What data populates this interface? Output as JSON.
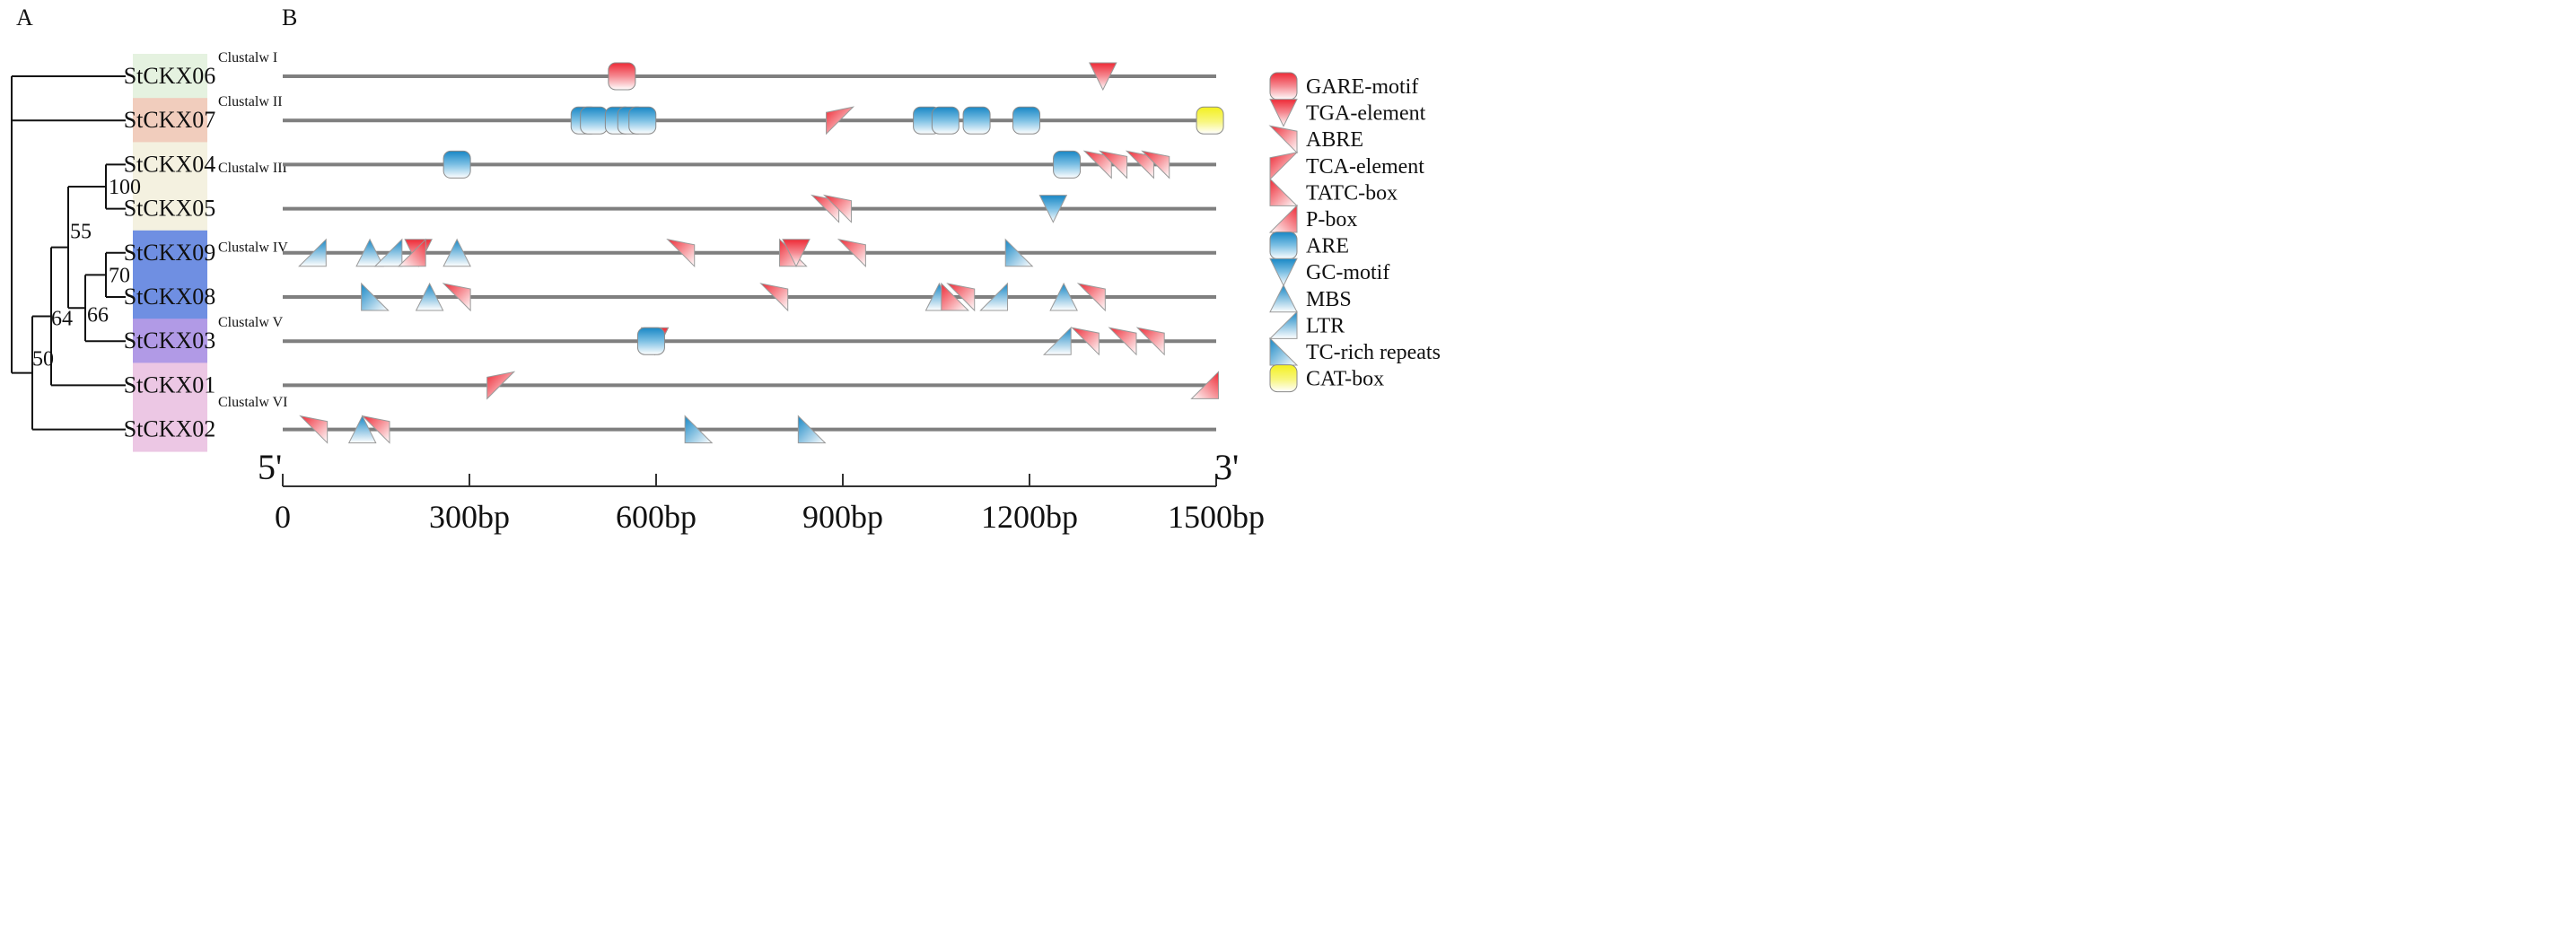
{
  "panels": {
    "left_label": "A",
    "right_label": "B"
  },
  "colors": {
    "red": "#ee2a36",
    "blue": "#1887c5",
    "yellow": "#f3f01e",
    "track": "#7f7f7f",
    "tree": "#111111",
    "green_box": "#e5f2e0",
    "salmon_box": "#f1cdbd",
    "cream_box": "#f4f1e0",
    "blue_box": "#6f8fe2",
    "purple_box": "#b19ae6",
    "pink_box": "#ecc7e4"
  },
  "genes": [
    {
      "name": "StCKX06",
      "box_color": "green_box"
    },
    {
      "name": "StCKX07",
      "box_color": "salmon_box"
    },
    {
      "name": "StCKX04",
      "box_color": "cream_box"
    },
    {
      "name": "StCKX05",
      "box_color": "cream_box"
    },
    {
      "name": "StCKX09",
      "box_color": "blue_box"
    },
    {
      "name": "StCKX08",
      "box_color": "blue_box"
    },
    {
      "name": "StCKX03",
      "box_color": "purple_box"
    },
    {
      "name": "StCKX01",
      "box_color": "pink_box"
    },
    {
      "name": "StCKX02",
      "box_color": "pink_box"
    }
  ],
  "clusters": [
    {
      "label": "Clustalw I",
      "row": 0
    },
    {
      "label": "Clustalw II",
      "row": 1
    },
    {
      "label": "Clustalw III",
      "row": 2.5
    },
    {
      "label": "Clustalw IV",
      "row": 4.3
    },
    {
      "label": "Clustalw V",
      "row": 6
    },
    {
      "label": "Clustalw VI",
      "row": 7.8
    }
  ],
  "bootstrap": [
    {
      "value": "100"
    },
    {
      "value": "70"
    },
    {
      "value": "66"
    },
    {
      "value": "55"
    },
    {
      "value": "64"
    },
    {
      "value": "50"
    }
  ],
  "axis": {
    "start_label": "5'",
    "end_label": "3'",
    "min": 0,
    "max": 1500,
    "ticks": [
      {
        "value": 0,
        "label": "0"
      },
      {
        "value": 300,
        "label": "300bp"
      },
      {
        "value": 600,
        "label": "600bp"
      },
      {
        "value": 900,
        "label": "900bp"
      },
      {
        "value": 1200,
        "label": "1200bp"
      },
      {
        "value": 1500,
        "label": "1500bp"
      }
    ]
  },
  "legend": [
    {
      "label": "GARE-motif",
      "shape": "rect-half",
      "color": "red"
    },
    {
      "label": "TGA-element",
      "shape": "tri-down",
      "color": "red"
    },
    {
      "label": "ABRE",
      "shape": "tri-topleft",
      "color": "red"
    },
    {
      "label": "TCA-element",
      "shape": "tri-topright",
      "color": "red"
    },
    {
      "label": "TATC-box",
      "shape": "tri-right-up",
      "color": "red"
    },
    {
      "label": "P-box",
      "shape": "tri-up-right",
      "color": "red"
    },
    {
      "label": "ARE",
      "shape": "rect-half",
      "color": "blue"
    },
    {
      "label": "GC-motif",
      "shape": "tri-down",
      "color": "blue"
    },
    {
      "label": "MBS",
      "shape": "tri-up",
      "color": "blue"
    },
    {
      "label": "LTR",
      "shape": "tri-up-right",
      "color": "blue"
    },
    {
      "label": "TC-rich repeats",
      "shape": "tri-right-up",
      "color": "blue"
    },
    {
      "label": "CAT-box",
      "shape": "rect-half",
      "color": "yellow"
    }
  ],
  "motifs": [
    [
      {
        "type": "GARE-motif",
        "pos": 545
      },
      {
        "type": "TGA-element",
        "pos": 1318
      }
    ],
    [
      {
        "type": "ARE",
        "pos": 485
      },
      {
        "type": "ARE",
        "pos": 500
      },
      {
        "type": "ARE",
        "pos": 540
      },
      {
        "type": "ARE",
        "pos": 560
      },
      {
        "type": "ARE",
        "pos": 578
      },
      {
        "type": "TCA-element",
        "pos": 895
      },
      {
        "type": "ARE",
        "pos": 1035
      },
      {
        "type": "ARE",
        "pos": 1065
      },
      {
        "type": "ARE",
        "pos": 1115
      },
      {
        "type": "ARE",
        "pos": 1195
      },
      {
        "type": "CAT-box",
        "pos": 1490
      }
    ],
    [
      {
        "type": "ARE",
        "pos": 280
      },
      {
        "type": "ARE",
        "pos": 1260
      },
      {
        "type": "ABRE",
        "pos": 1310
      },
      {
        "type": "ABRE",
        "pos": 1335
      },
      {
        "type": "ABRE",
        "pos": 1378
      },
      {
        "type": "ABRE",
        "pos": 1403
      }
    ],
    [
      {
        "type": "ABRE",
        "pos": 872
      },
      {
        "type": "ABRE",
        "pos": 892
      },
      {
        "type": "GC-motif",
        "pos": 1238
      }
    ],
    [
      {
        "type": "LTR",
        "pos": 48
      },
      {
        "type": "MBS",
        "pos": 140
      },
      {
        "type": "LTR",
        "pos": 170
      },
      {
        "type": "TGA-element",
        "pos": 218
      },
      {
        "type": "P-box",
        "pos": 208
      },
      {
        "type": "MBS",
        "pos": 280
      },
      {
        "type": "ABRE",
        "pos": 640
      },
      {
        "type": "TATC-box",
        "pos": 820
      },
      {
        "type": "TGA-element",
        "pos": 825
      },
      {
        "type": "ABRE",
        "pos": 915
      },
      {
        "type": "TC-rich repeats",
        "pos": 1183
      }
    ],
    [
      {
        "type": "TC-rich repeats",
        "pos": 148
      },
      {
        "type": "MBS",
        "pos": 236
      },
      {
        "type": "ABRE",
        "pos": 280
      },
      {
        "type": "ABRE",
        "pos": 790
      },
      {
        "type": "MBS",
        "pos": 1055
      },
      {
        "type": "TATC-box",
        "pos": 1080
      },
      {
        "type": "ABRE",
        "pos": 1090
      },
      {
        "type": "LTR",
        "pos": 1143
      },
      {
        "type": "MBS",
        "pos": 1255
      },
      {
        "type": "ABRE",
        "pos": 1300
      }
    ],
    [
      {
        "type": "TGA-element",
        "pos": 598
      },
      {
        "type": "ARE",
        "pos": 592
      },
      {
        "type": "LTR",
        "pos": 1245
      },
      {
        "type": "ABRE",
        "pos": 1290
      },
      {
        "type": "ABRE",
        "pos": 1350
      },
      {
        "type": "ABRE",
        "pos": 1395
      }
    ],
    [
      {
        "type": "TCA-element",
        "pos": 350
      },
      {
        "type": "P-box",
        "pos": 1482
      }
    ],
    [
      {
        "type": "ABRE",
        "pos": 50
      },
      {
        "type": "MBS",
        "pos": 128
      },
      {
        "type": "ABRE",
        "pos": 150
      },
      {
        "type": "TC-rich repeats",
        "pos": 668
      },
      {
        "type": "TC-rich repeats",
        "pos": 850
      }
    ]
  ]
}
